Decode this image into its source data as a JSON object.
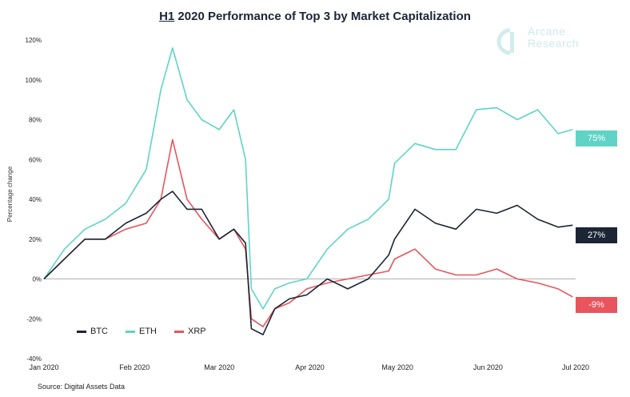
{
  "title": {
    "underlined": "H1",
    "rest": " 2020 Performance of Top 3 by Market Capitalization"
  },
  "brand": {
    "line1": "Arcane",
    "line2": "Research"
  },
  "source": "Source: Digital Assets Data",
  "colors": {
    "BTC": "#1c2536",
    "ETH": "#5fd4c6",
    "XRP": "#e8555d",
    "grid": "#e6e6e6",
    "zero": "#999999"
  },
  "chart_data": {
    "type": "line",
    "title": "H1 2020 Performance of Top 3 by Market Capitalization",
    "xlabel": "",
    "ylabel": "Percentage change",
    "ylim": [
      -40,
      120
    ],
    "yticks": [
      "120%",
      "100%",
      "80%",
      "60%",
      "40%",
      "20%",
      "0%",
      "-20%",
      "-40%"
    ],
    "xticks": [
      "Jan 2020",
      "Feb 2020",
      "Mar 2020",
      "Apr 2020",
      "May 2020",
      "Jun 2020",
      "Jul 2020"
    ],
    "grid": false,
    "legend": "bottom-left",
    "x": [
      "2020-01-01",
      "2020-01-08",
      "2020-01-15",
      "2020-01-22",
      "2020-01-29",
      "2020-02-05",
      "2020-02-10",
      "2020-02-14",
      "2020-02-19",
      "2020-02-24",
      "2020-03-01",
      "2020-03-06",
      "2020-03-10",
      "2020-03-12",
      "2020-03-16",
      "2020-03-20",
      "2020-03-25",
      "2020-03-31",
      "2020-04-07",
      "2020-04-14",
      "2020-04-21",
      "2020-04-28",
      "2020-04-30",
      "2020-05-07",
      "2020-05-14",
      "2020-05-21",
      "2020-05-28",
      "2020-06-04",
      "2020-06-11",
      "2020-06-18",
      "2020-06-25",
      "2020-06-30"
    ],
    "series": [
      {
        "name": "BTC",
        "values": [
          0,
          10,
          20,
          20,
          28,
          33,
          40,
          44,
          35,
          35,
          20,
          25,
          18,
          -25,
          -28,
          -15,
          -10,
          -8,
          0,
          -5,
          0,
          12,
          20,
          35,
          28,
          25,
          35,
          33,
          37,
          30,
          26,
          27
        ]
      },
      {
        "name": "ETH",
        "values": [
          0,
          15,
          25,
          30,
          38,
          55,
          95,
          116,
          90,
          80,
          75,
          85,
          60,
          -5,
          -15,
          -5,
          -2,
          0,
          15,
          25,
          30,
          40,
          58,
          68,
          65,
          65,
          85,
          86,
          80,
          85,
          73,
          75
        ]
      },
      {
        "name": "XRP",
        "values": [
          0,
          10,
          20,
          20,
          25,
          28,
          40,
          70,
          40,
          30,
          20,
          25,
          15,
          -20,
          -24,
          -15,
          -12,
          -5,
          -2,
          0,
          2,
          4,
          10,
          15,
          5,
          2,
          2,
          5,
          0,
          -2,
          -5,
          -9
        ]
      }
    ],
    "end_labels": {
      "ETH": "75%",
      "BTC": "27%",
      "XRP": "-9%"
    }
  }
}
